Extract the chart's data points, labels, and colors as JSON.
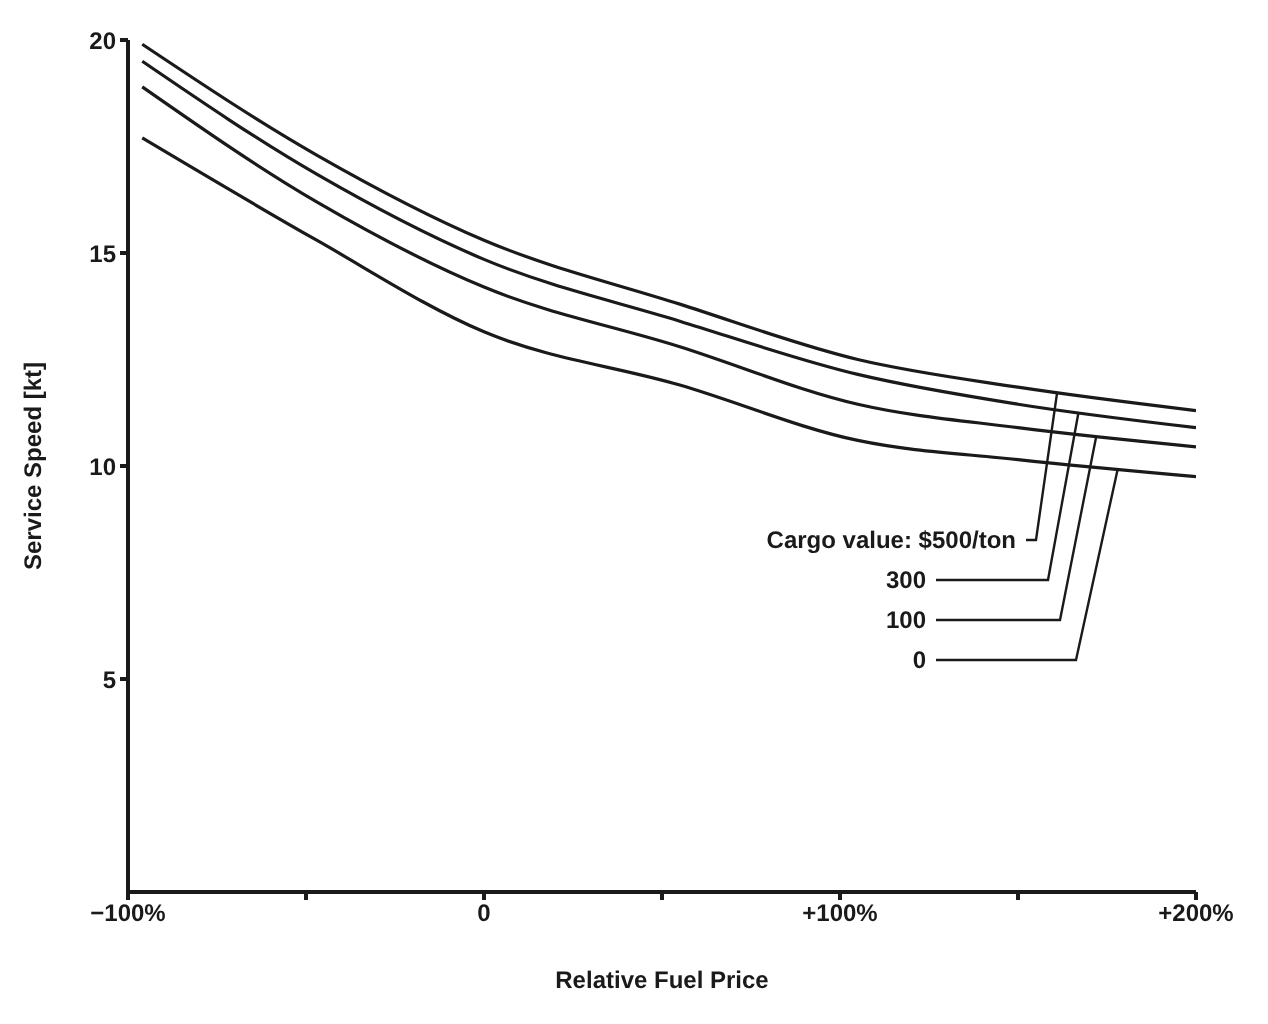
{
  "chart_data": {
    "type": "line",
    "xlabel": "Relative Fuel Price",
    "ylabel": "Service Speed [kt]",
    "x": [
      -96,
      -47,
      0,
      55,
      105,
      150,
      200
    ],
    "series": [
      {
        "name": "Cargo value: $500/ton",
        "color": "#1a1a1a",
        "values": [
          19.9,
          17.3,
          15.3,
          13.8,
          12.5,
          11.85,
          11.3
        ]
      },
      {
        "name": "300",
        "color": "#1a1a1a",
        "values": [
          19.5,
          16.85,
          14.85,
          13.4,
          12.15,
          11.45,
          10.9
        ]
      },
      {
        "name": "100",
        "color": "#1a1a1a",
        "values": [
          18.9,
          16.2,
          14.2,
          12.8,
          11.45,
          10.9,
          10.45
        ]
      },
      {
        "name": "0",
        "color": "#1a1a1a",
        "values": [
          17.7,
          15.3,
          13.15,
          11.9,
          10.6,
          10.15,
          9.75
        ]
      }
    ],
    "xlim": [
      -100,
      200
    ],
    "xticks": [
      {
        "value": -100,
        "label": "−100%"
      },
      {
        "value": -50,
        "label": null
      },
      {
        "value": 0,
        "label": "0"
      },
      {
        "value": 50,
        "label": null
      },
      {
        "value": 100,
        "label": "+100%"
      },
      {
        "value": 150,
        "label": null
      },
      {
        "value": 200,
        "label": "+200%"
      }
    ],
    "ylim": [
      0,
      20
    ],
    "yticks": [
      5,
      10,
      15,
      20
    ],
    "grid": false,
    "legend": false,
    "marker": "none",
    "line_style": "solid"
  }
}
